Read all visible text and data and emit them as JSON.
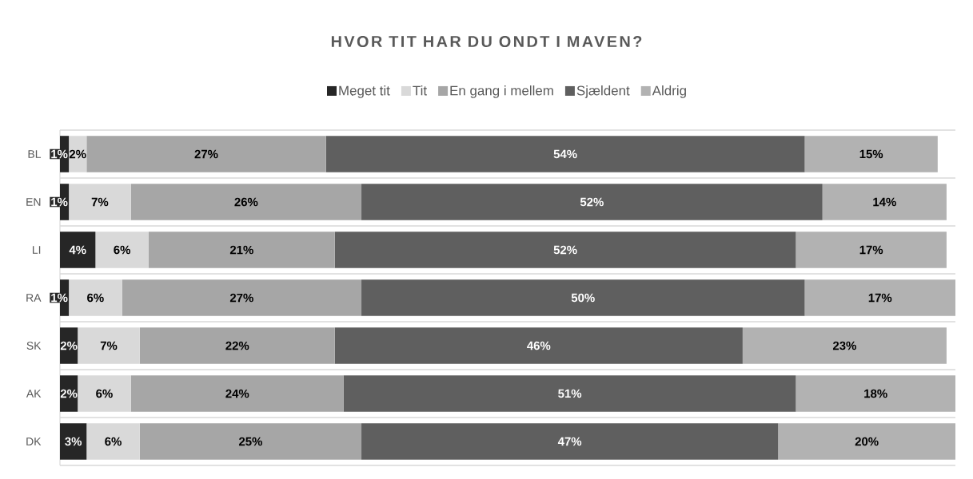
{
  "chart_data": {
    "type": "bar",
    "orientation": "horizontal",
    "stacked": true,
    "title": "HVOR TIT HAR DU ONDT I MAVEN?",
    "categories": [
      "BL",
      "EN",
      "LI",
      "RA",
      "SK",
      "AK",
      "DK"
    ],
    "xlim": [
      0,
      101
    ],
    "grid": "y",
    "legend": "top",
    "series": [
      {
        "name": "Meget tit",
        "color": "#262626",
        "values": [
          1,
          1,
          4,
          1,
          2,
          2,
          3
        ],
        "value_labels": [
          "1%",
          "1%",
          "4%",
          "1%",
          "2%",
          "2%",
          "3%"
        ]
      },
      {
        "name": "Tit",
        "color": "#d9d9d9",
        "values": [
          2,
          7,
          6,
          6,
          7,
          6,
          6
        ],
        "value_labels": [
          "2%",
          "7%",
          "6%",
          "6%",
          "7%",
          "6%",
          "6%"
        ]
      },
      {
        "name": "En gang i mellem",
        "color": "#a6a6a6",
        "values": [
          27,
          26,
          21,
          27,
          22,
          24,
          25
        ],
        "value_labels": [
          "27%",
          "26%",
          "21%",
          "27%",
          "22%",
          "24%",
          "25%"
        ]
      },
      {
        "name": "Sjældent",
        "color": "#5f5f5f",
        "values": [
          54,
          52,
          52,
          50,
          46,
          51,
          47
        ],
        "value_labels": [
          "54%",
          "52%",
          "52%",
          "50%",
          "46%",
          "51%",
          "47%"
        ]
      },
      {
        "name": "Aldrig",
        "color": "#b2b2b2",
        "values": [
          15,
          14,
          17,
          17,
          23,
          18,
          20
        ],
        "value_labels": [
          "15%",
          "14%",
          "17%",
          "17%",
          "23%",
          "18%",
          "20%"
        ]
      }
    ]
  }
}
